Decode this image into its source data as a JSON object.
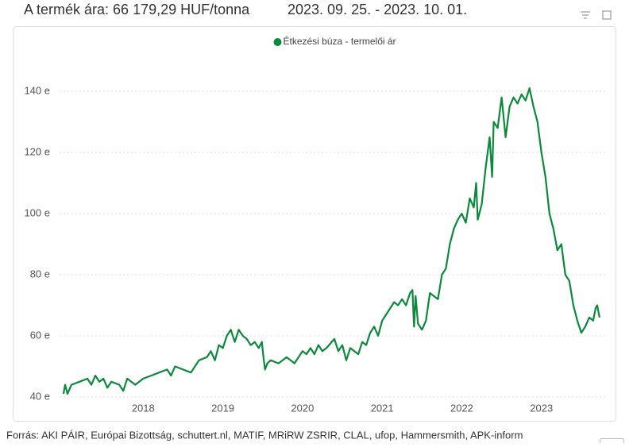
{
  "header": {
    "price": "A termék ára: 66 179,29 HUF/tonna",
    "period": "2023. 09. 25. - 2023. 10. 01."
  },
  "chart_data": {
    "type": "line",
    "x": [
      2017.0,
      2017.02,
      2017.05,
      2017.1,
      2017.2,
      2017.3,
      2017.35,
      2017.4,
      2017.45,
      2017.5,
      2017.55,
      2017.6,
      2017.7,
      2017.75,
      2017.8,
      2017.9,
      2018.0,
      2018.1,
      2018.2,
      2018.3,
      2018.35,
      2018.4,
      2018.5,
      2018.6,
      2018.65,
      2018.7,
      2018.8,
      2018.85,
      2018.9,
      2018.95,
      2019.0,
      2019.05,
      2019.1,
      2019.15,
      2019.2,
      2019.25,
      2019.3,
      2019.35,
      2019.4,
      2019.45,
      2019.49,
      2019.51,
      2019.53,
      2019.56,
      2019.6,
      2019.7,
      2019.8,
      2019.9,
      2020.0,
      2020.05,
      2020.1,
      2020.15,
      2020.2,
      2020.25,
      2020.3,
      2020.4,
      2020.45,
      2020.5,
      2020.55,
      2020.6,
      2020.7,
      2020.75,
      2020.8,
      2020.85,
      2020.9,
      2020.95,
      2021.0,
      2021.05,
      2021.1,
      2021.15,
      2021.2,
      2021.25,
      2021.3,
      2021.35,
      2021.38,
      2021.4,
      2021.42,
      2021.45,
      2021.5,
      2021.55,
      2021.6,
      2021.65,
      2021.7,
      2021.75,
      2021.8,
      2021.85,
      2021.9,
      2021.95,
      2022.0,
      2022.05,
      2022.1,
      2022.15,
      2022.18,
      2022.2,
      2022.25,
      2022.3,
      2022.35,
      2022.38,
      2022.4,
      2022.45,
      2022.5,
      2022.55,
      2022.6,
      2022.65,
      2022.7,
      2022.75,
      2022.8,
      2022.85,
      2022.9,
      2022.95,
      2023.0,
      2023.05,
      2023.1,
      2023.15,
      2023.2,
      2023.25,
      2023.3,
      2023.35,
      2023.4,
      2023.45,
      2023.5,
      2023.55,
      2023.6,
      2023.65,
      2023.68,
      2023.7,
      2023.73
    ],
    "series": [
      {
        "name": "Étkezési búza - termelői ár",
        "color": "#0a8a3a",
        "values": [
          41,
          44,
          41,
          44,
          45,
          46,
          44,
          47,
          45,
          46,
          43,
          45,
          44,
          42,
          46,
          44,
          46,
          47,
          48,
          49,
          47,
          50,
          49,
          48,
          50,
          52,
          53,
          55,
          52,
          57,
          56,
          60,
          62,
          58,
          62,
          60,
          59,
          57,
          58,
          56,
          58,
          53,
          49,
          51,
          52,
          51,
          53,
          51,
          55,
          54,
          56,
          54,
          57,
          55,
          56,
          59,
          55,
          57,
          52,
          56,
          54,
          58,
          57,
          61,
          63,
          60,
          65,
          67,
          69,
          71,
          70,
          72,
          70,
          74,
          75,
          63,
          73,
          64,
          62,
          65,
          74,
          73,
          72,
          80,
          82,
          90,
          95,
          98,
          100,
          97,
          105,
          102,
          110,
          98,
          103,
          115,
          125,
          112,
          130,
          128,
          138,
          125,
          135,
          138,
          136,
          139,
          137,
          141,
          135,
          130,
          120,
          112,
          100,
          95,
          88,
          90,
          80,
          78,
          70,
          65,
          61,
          63,
          66,
          65,
          69,
          70,
          66
        ]
      }
    ],
    "xlim": [
      2016.95,
      2023.92
    ],
    "xticks": [
      2018,
      2019,
      2020,
      2021,
      2022,
      2023
    ],
    "ylim": [
      40,
      150
    ],
    "yticks": [
      {
        "value": 40,
        "label": "40 e"
      },
      {
        "value": 60,
        "label": "60 e"
      },
      {
        "value": 80,
        "label": "80 e"
      },
      {
        "value": 100,
        "label": "100 e"
      },
      {
        "value": 120,
        "label": "120 e"
      },
      {
        "value": 140,
        "label": "140 e"
      }
    ],
    "grid": true,
    "legend": "top"
  },
  "footer": {
    "source": "Forrás: AKI PÁIR, Európai Bizottság, schuttert.nl, MATIF, MRiRW ZSRIR, CLAL, ufop, Hammersmith, APK-inform"
  }
}
